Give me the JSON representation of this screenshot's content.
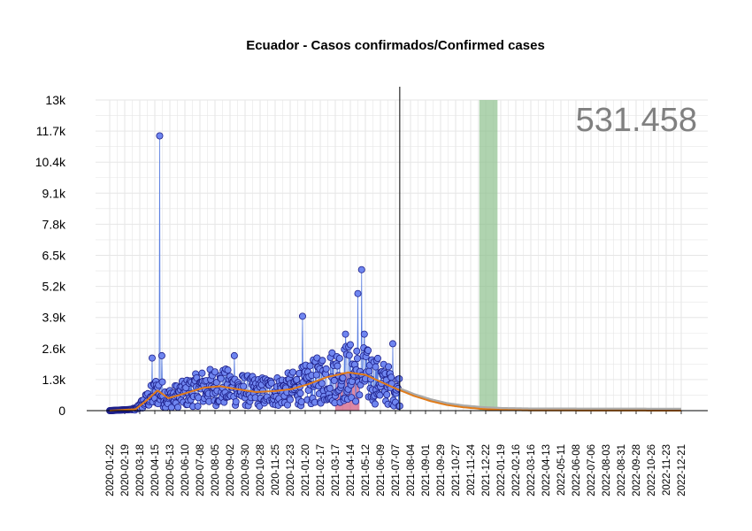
{
  "chart_data": {
    "type": "scatter",
    "title": "Ecuador - Casos confirmados/Confirmed cases",
    "total_label": "531.458",
    "y_ticks": [
      "0",
      "1.3k",
      "2.6k",
      "3.9k",
      "5.2k",
      "6.5k",
      "7.8k",
      "9.1k",
      "10.4k",
      "11.7k",
      "13k"
    ],
    "ylim": [
      0,
      13000
    ],
    "x_range": [
      "2020-01-22",
      "2022-12-21"
    ],
    "x_ticks": [
      "2020-01-22",
      "2020-02-19",
      "2020-03-18",
      "2020-04-15",
      "2020-05-13",
      "2020-06-10",
      "2020-07-08",
      "2020-08-05",
      "2020-09-02",
      "2020-09-30",
      "2020-10-28",
      "2020-11-25",
      "2020-12-23",
      "2021-01-20",
      "2021-02-17",
      "2021-03-17",
      "2021-04-14",
      "2021-05-12",
      "2021-06-09",
      "2021-07-07",
      "2021-08-04",
      "2021-09-01",
      "2021-09-29",
      "2021-10-27",
      "2021-11-24",
      "2021-12-22",
      "2022-01-19",
      "2022-02-16",
      "2022-03-16",
      "2022-04-13",
      "2022-05-11",
      "2022-06-08",
      "2022-07-06",
      "2022-08-03",
      "2022-08-31",
      "2022-09-28",
      "2022-10-26",
      "2022-11-23",
      "2022-12-21"
    ],
    "today_line": "2021-07-15",
    "shaded_green": [
      "2021-12-10",
      "2022-01-13"
    ],
    "shaded_red": [
      "2021-03-17",
      "2021-05-01"
    ],
    "highlights": [
      {
        "x": "2020-04-24",
        "y": 11500
      },
      {
        "x": "2021-05-05",
        "y": 5900
      },
      {
        "x": "2021-04-28",
        "y": 4900
      },
      {
        "x": "2021-01-15",
        "y": 3950
      },
      {
        "x": "2020-04-10",
        "y": 2200
      },
      {
        "x": "2020-04-28",
        "y": 2300
      },
      {
        "x": "2020-09-10",
        "y": 2300
      },
      {
        "x": "2021-07-02",
        "y": 2800
      },
      {
        "x": "2021-04-05",
        "y": 3200
      },
      {
        "x": "2021-05-10",
        "y": 3200
      }
    ],
    "trend": [
      {
        "x": "2020-01-22",
        "y": 0
      },
      {
        "x": "2020-03-10",
        "y": 60
      },
      {
        "x": "2020-04-01",
        "y": 450
      },
      {
        "x": "2020-04-20",
        "y": 850
      },
      {
        "x": "2020-05-10",
        "y": 520
      },
      {
        "x": "2020-06-10",
        "y": 720
      },
      {
        "x": "2020-07-15",
        "y": 960
      },
      {
        "x": "2020-08-15",
        "y": 1020
      },
      {
        "x": "2020-09-15",
        "y": 900
      },
      {
        "x": "2020-10-20",
        "y": 780
      },
      {
        "x": "2020-11-25",
        "y": 820
      },
      {
        "x": "2020-12-25",
        "y": 900
      },
      {
        "x": "2021-01-25",
        "y": 1100
      },
      {
        "x": "2021-03-01",
        "y": 1400
      },
      {
        "x": "2021-04-10",
        "y": 1600
      },
      {
        "x": "2021-05-12",
        "y": 1500
      },
      {
        "x": "2021-06-10",
        "y": 1200
      },
      {
        "x": "2021-07-10",
        "y": 900
      },
      {
        "x": "2021-08-10",
        "y": 620
      },
      {
        "x": "2021-09-10",
        "y": 400
      },
      {
        "x": "2021-10-10",
        "y": 240
      },
      {
        "x": "2021-11-10",
        "y": 140
      },
      {
        "x": "2021-12-15",
        "y": 70
      },
      {
        "x": "2022-01-20",
        "y": 30
      },
      {
        "x": "2022-03-16",
        "y": 10
      },
      {
        "x": "2022-12-21",
        "y": 0
      }
    ],
    "colors": {
      "points": "#6f86f0",
      "point_edge": "#1d1f8a",
      "line": "#5b7fe0",
      "trend": "#e07b1a",
      "forecast": "#aaaaaa",
      "green_band": "#8dc08d",
      "red_band": "#c1275a",
      "grid": "#e6e6e6"
    }
  }
}
